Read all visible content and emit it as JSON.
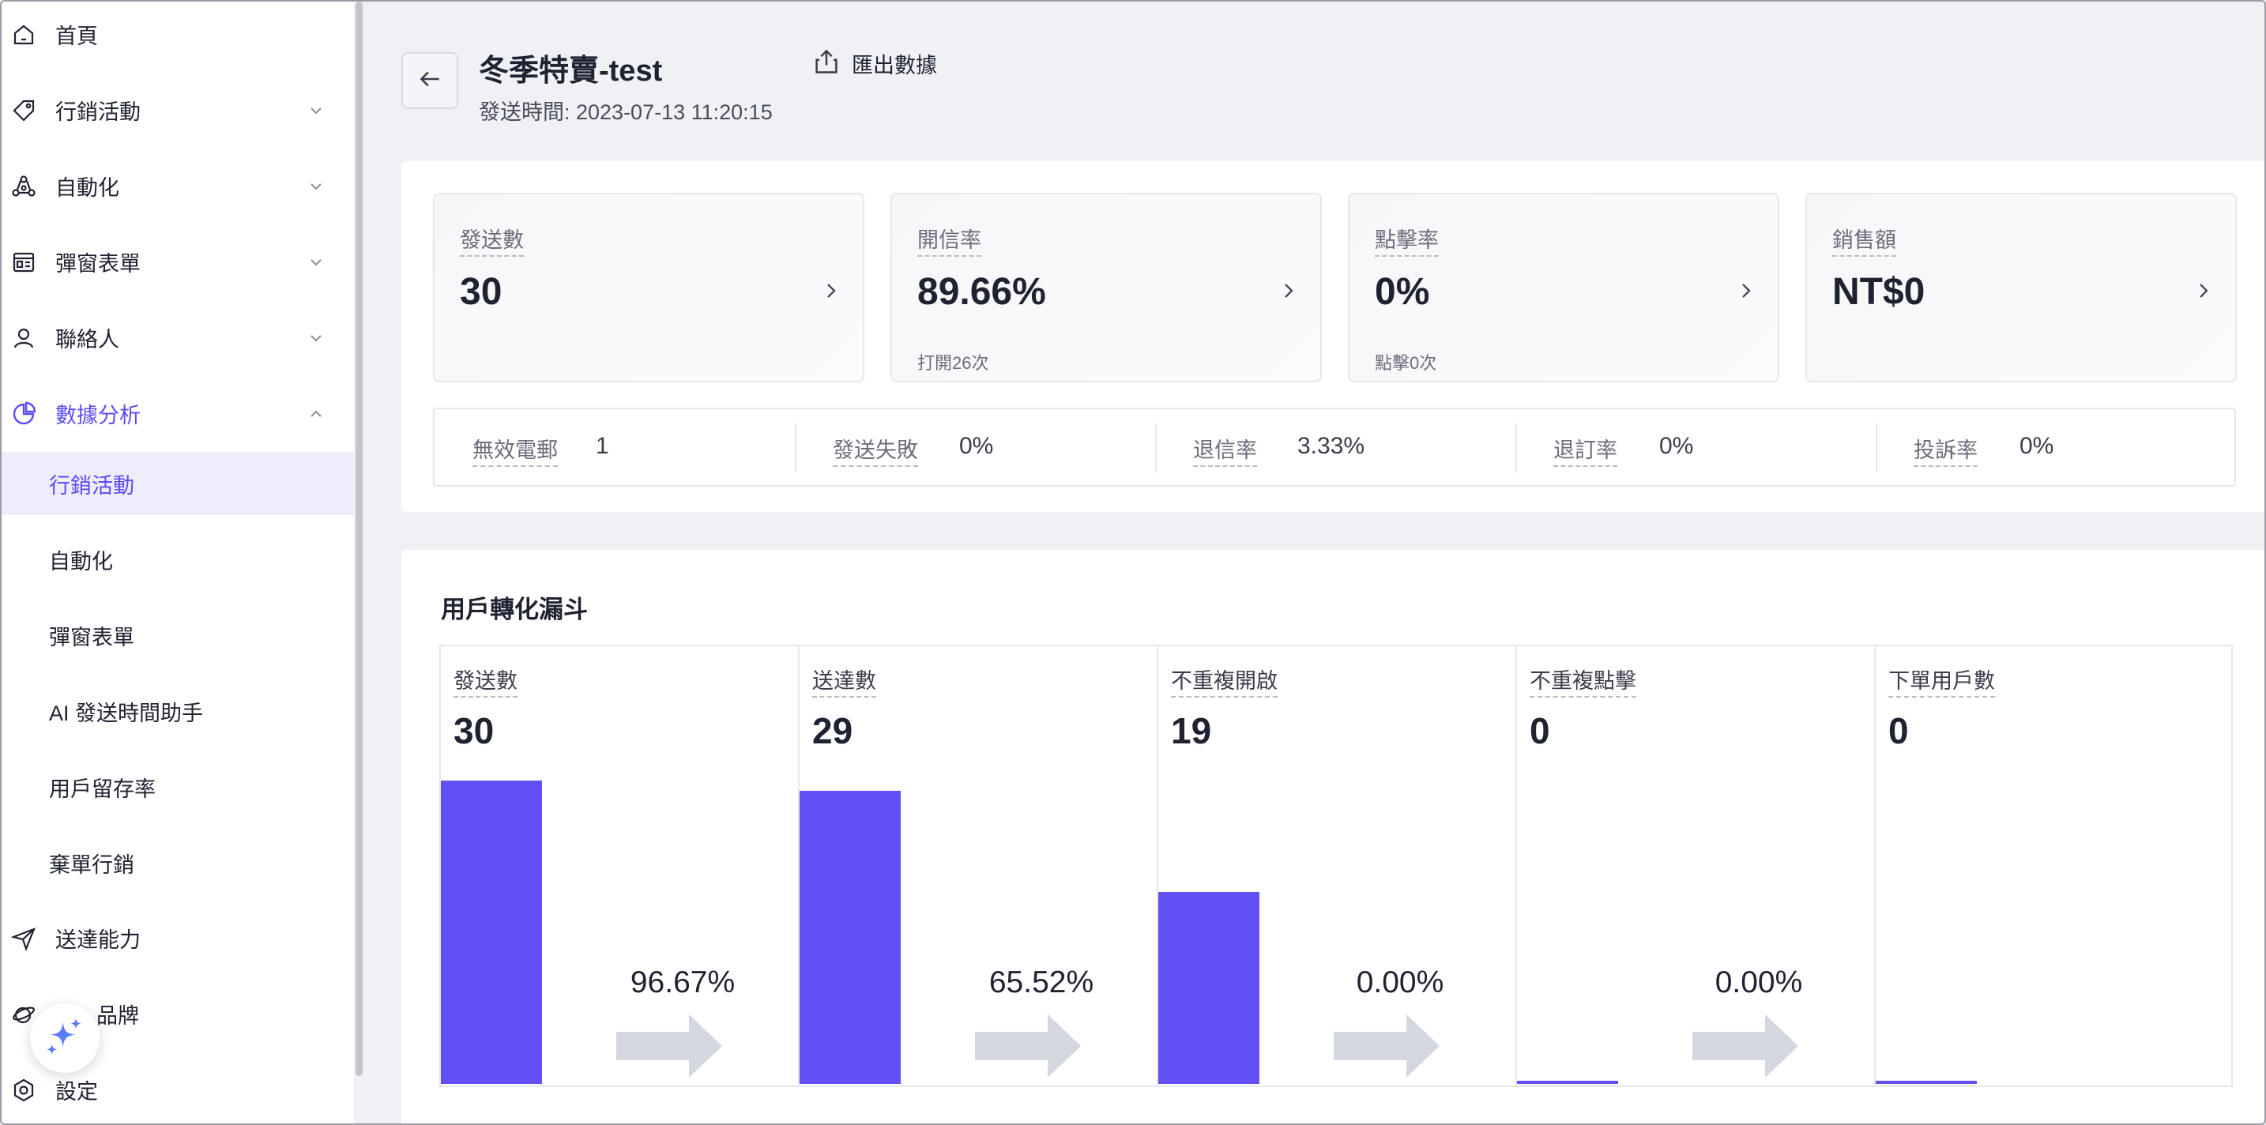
{
  "sidebar": {
    "items": [
      {
        "label": "首頁",
        "icon": "home-icon"
      },
      {
        "label": "行銷活動",
        "icon": "tag-icon"
      },
      {
        "label": "自動化",
        "icon": "automation-icon"
      },
      {
        "label": "彈窗表單",
        "icon": "form-icon"
      },
      {
        "label": "聯絡人",
        "icon": "person-icon"
      },
      {
        "label": "數據分析",
        "icon": "pie-chart-icon"
      }
    ],
    "sub_items": [
      {
        "label": "行銷活動",
        "selected": true
      },
      {
        "label": "自動化"
      },
      {
        "label": "彈窗表單"
      },
      {
        "label": "AI 發送時間助手"
      },
      {
        "label": "用戶留存率"
      },
      {
        "label": "棄單行銷"
      }
    ],
    "bottom_items": [
      {
        "label": "送達能力",
        "icon": "send-icon"
      },
      {
        "label": "品牌",
        "icon": "brand-icon"
      },
      {
        "label": "設定",
        "icon": "settings-icon"
      }
    ],
    "fab_icon": "sparkle-icon"
  },
  "header": {
    "title": "冬季特賣-test",
    "send_time": "發送時間: 2023-07-13 11:20:15",
    "export_label": "匯出數據"
  },
  "stats": [
    {
      "title": "發送數",
      "value": "30",
      "sub": ""
    },
    {
      "title": "開信率",
      "value": "89.66%",
      "sub": "打開26次"
    },
    {
      "title": "點擊率",
      "value": "0%",
      "sub": "點擊0次"
    },
    {
      "title": "銷售額",
      "value": "NT$0",
      "sub": ""
    }
  ],
  "metrics": [
    {
      "label": "無效電郵",
      "value": "1"
    },
    {
      "label": "發送失敗",
      "value": "0%"
    },
    {
      "label": "退信率",
      "value": "3.33%"
    },
    {
      "label": "退訂率",
      "value": "0%"
    },
    {
      "label": "投訴率",
      "value": "0%"
    }
  ],
  "funnel": {
    "title": "用戶轉化漏斗",
    "steps": [
      {
        "label": "發送數",
        "value": "30",
        "count": 30,
        "rate": "96.67%"
      },
      {
        "label": "送達數",
        "value": "29",
        "count": 29,
        "rate": "65.52%"
      },
      {
        "label": "不重複開啟",
        "value": "19",
        "count": 19,
        "rate": "0.00%"
      },
      {
        "label": "不重複點擊",
        "value": "0",
        "count": 0,
        "rate": "0.00%"
      },
      {
        "label": "下單用戶數",
        "value": "0",
        "count": 0,
        "rate": ""
      }
    ],
    "bar_color": "#6250f4",
    "arrow_color": "#d5d7e0"
  },
  "colors": {
    "accent": "#5b4bff",
    "selected_bg": "#eeedfb"
  }
}
